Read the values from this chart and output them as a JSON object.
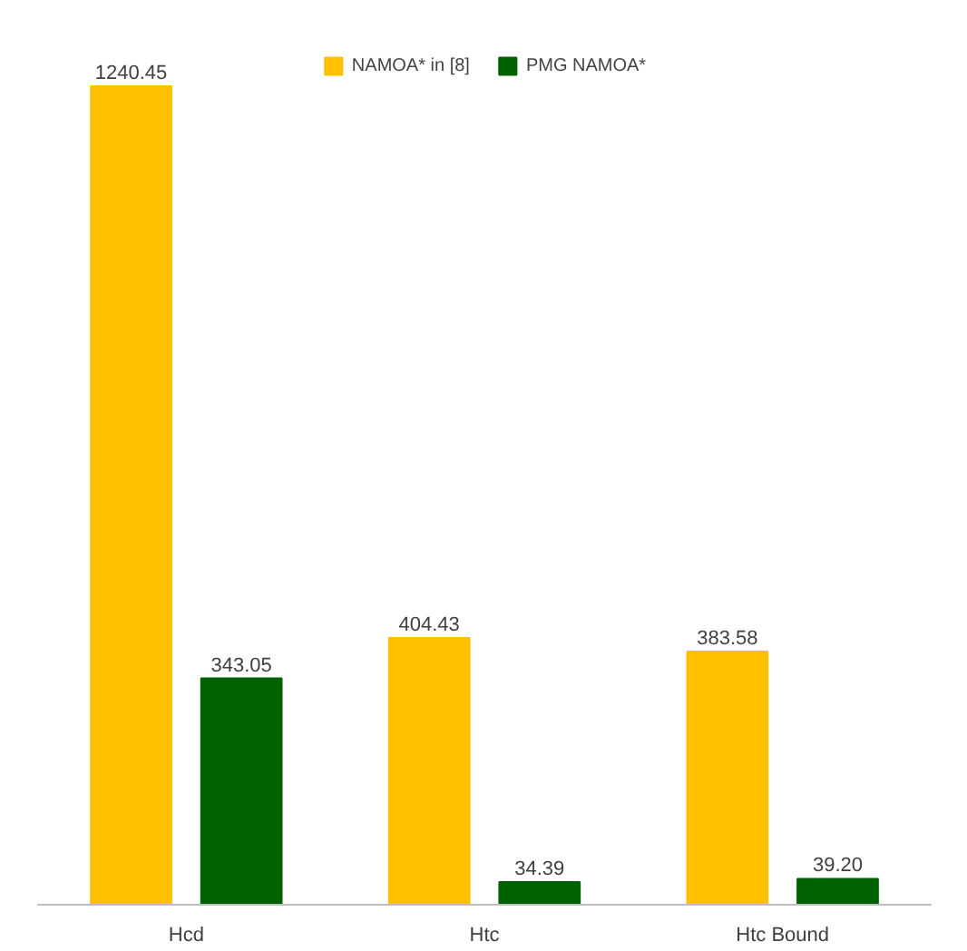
{
  "chart_data": {
    "type": "bar",
    "categories": [
      "Hcd",
      "Htc",
      "Htc Bound"
    ],
    "series": [
      {
        "name": "NAMOA* in [8]",
        "color": "#ffc000",
        "values": [
          1240.45,
          404.43,
          383.58
        ],
        "value_labels": [
          "1240.45",
          "404.43",
          "383.58"
        ]
      },
      {
        "name": "PMG NAMOA*",
        "color": "#006100",
        "values": [
          343.05,
          34.39,
          39.2
        ],
        "value_labels": [
          "343.05",
          "34.39",
          "39.20"
        ]
      }
    ],
    "legend": "top",
    "grid": false
  }
}
